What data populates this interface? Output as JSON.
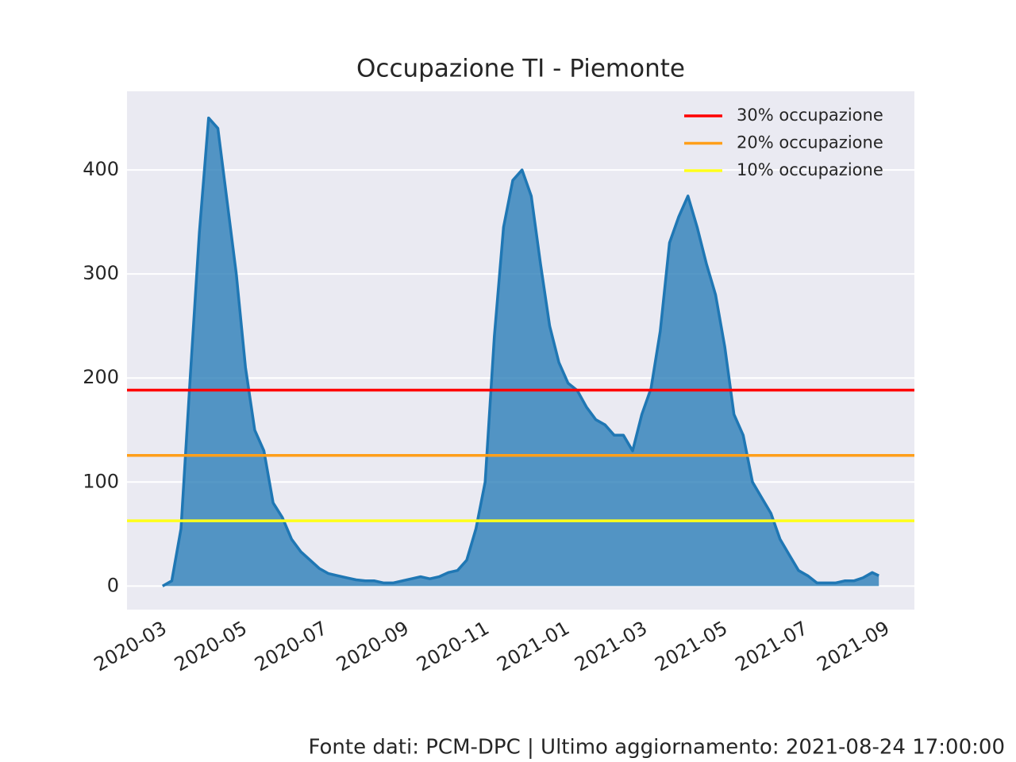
{
  "chart_data": {
    "type": "area",
    "title": "Occupazione TI - Piemonte",
    "footnote": "Fonte dati: PCM-DPC | Ultimo aggiornamento: 2021-08-24 17:00:00",
    "x": [
      18320,
      18327,
      18334,
      18341,
      18348,
      18355,
      18362,
      18369,
      18376,
      18383,
      18390,
      18397,
      18404,
      18411,
      18418,
      18425,
      18432,
      18439,
      18446,
      18453,
      18460,
      18467,
      18474,
      18481,
      18488,
      18495,
      18502,
      18509,
      18516,
      18523,
      18530,
      18537,
      18544,
      18551,
      18558,
      18565,
      18572,
      18579,
      18586,
      18593,
      18600,
      18607,
      18614,
      18621,
      18628,
      18635,
      18642,
      18649,
      18656,
      18663,
      18670,
      18677,
      18684,
      18691,
      18698,
      18705,
      18712,
      18719,
      18726,
      18733,
      18740,
      18747,
      18754,
      18761,
      18768,
      18775,
      18782,
      18789,
      18796,
      18803,
      18810,
      18817,
      18824,
      18831,
      18838,
      18845,
      18852,
      18859,
      18864
    ],
    "values": [
      0,
      5,
      55,
      200,
      340,
      450,
      440,
      370,
      300,
      210,
      150,
      130,
      80,
      66,
      45,
      33,
      25,
      17,
      12,
      10,
      8,
      6,
      5,
      5,
      3,
      3,
      5,
      7,
      9,
      7,
      9,
      13,
      15,
      25,
      55,
      100,
      240,
      345,
      390,
      400,
      375,
      310,
      250,
      215,
      195,
      188,
      172,
      160,
      155,
      145,
      145,
      130,
      165,
      190,
      245,
      330,
      355,
      375,
      345,
      310,
      280,
      230,
      165,
      145,
      100,
      85,
      70,
      45,
      30,
      15,
      10,
      3,
      3,
      3,
      5,
      5,
      8,
      13,
      10
    ],
    "color": "#1f77b4",
    "hlines": [
      {
        "name": "30% occupazione",
        "value": 188.4,
        "color": "#ff0000"
      },
      {
        "name": "20% occupazione",
        "value": 125.6,
        "color": "#ff9f1a"
      },
      {
        "name": "10% occupazione",
        "value": 62.8,
        "color": "#ffff1a"
      }
    ],
    "xlim": [
      18293,
      18891
    ],
    "xticks": [
      {
        "value": 18322,
        "label": "2020-03"
      },
      {
        "value": 18383,
        "label": "2020-05"
      },
      {
        "value": 18444,
        "label": "2020-07"
      },
      {
        "value": 18506,
        "label": "2020-09"
      },
      {
        "value": 18567,
        "label": "2020-11"
      },
      {
        "value": 18628,
        "label": "2021-01"
      },
      {
        "value": 18687,
        "label": "2021-03"
      },
      {
        "value": 18748,
        "label": "2021-05"
      },
      {
        "value": 18809,
        "label": "2021-07"
      },
      {
        "value": 18871,
        "label": "2021-09"
      }
    ],
    "ylim": [
      -22.6,
      475.6
    ],
    "yticks": [
      0,
      100,
      200,
      300,
      400
    ],
    "grid": true,
    "legend": "upper right"
  }
}
